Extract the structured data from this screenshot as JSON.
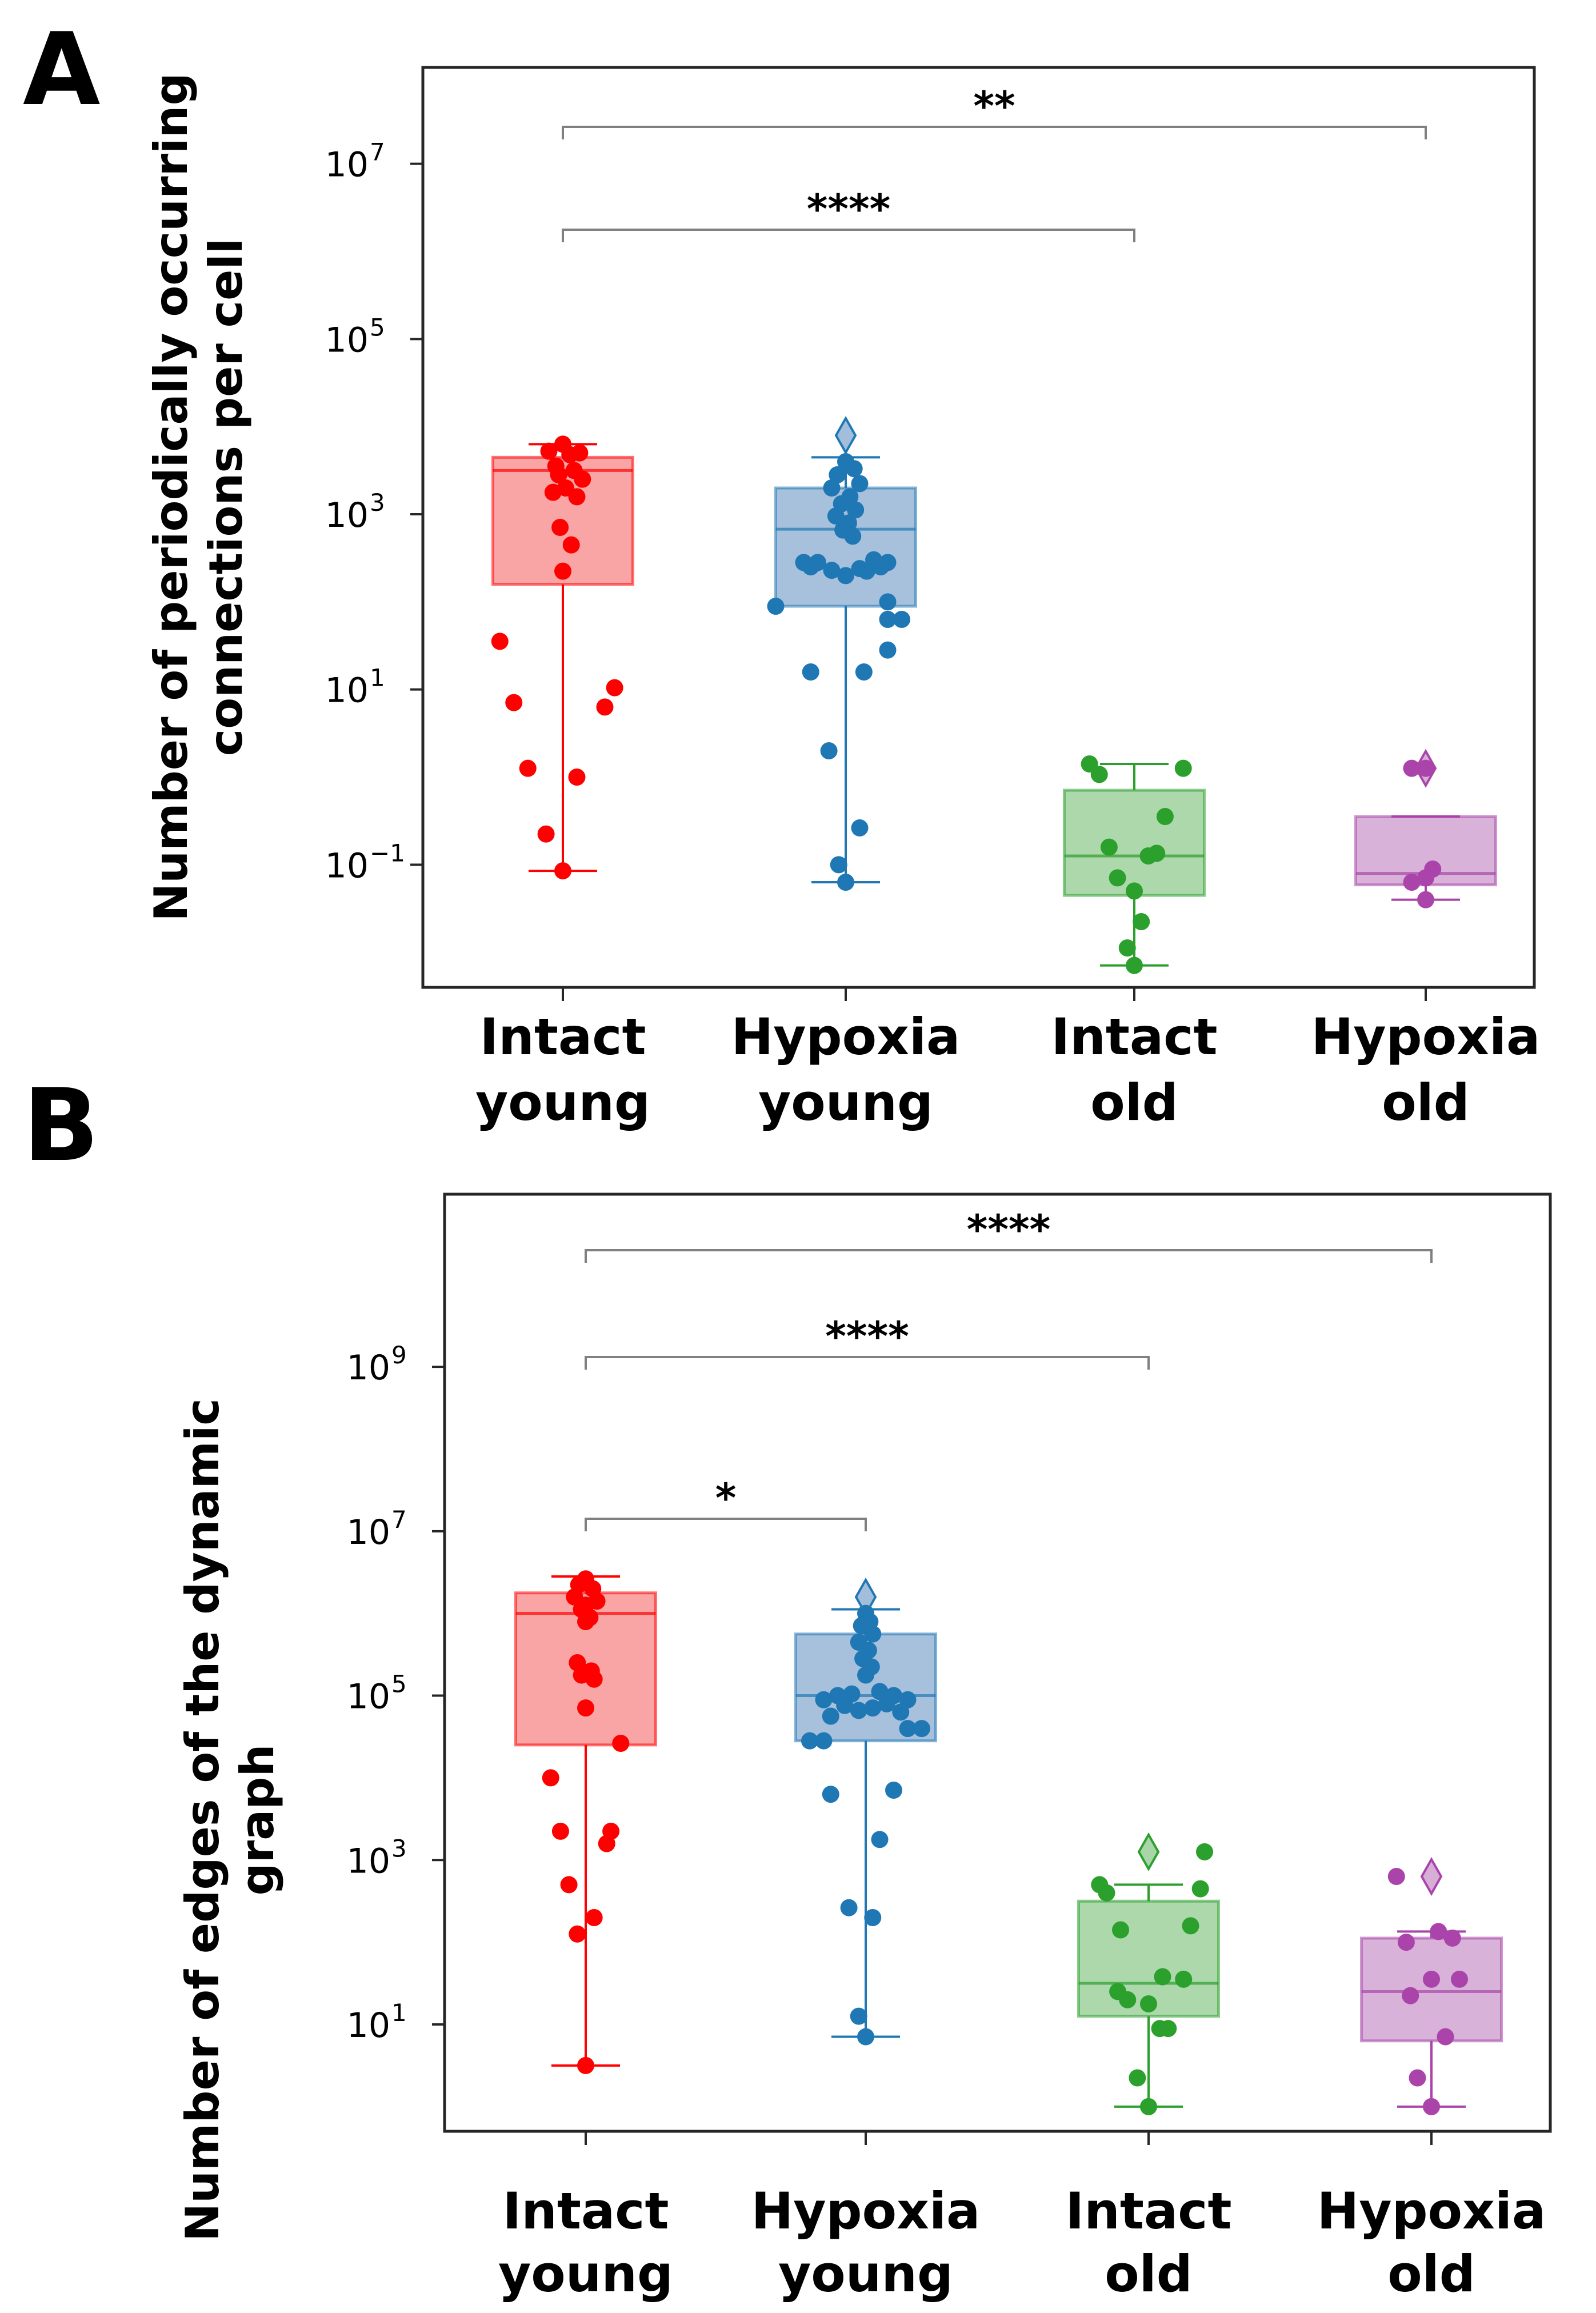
{
  "chart_data": [
    {
      "panel": "A",
      "type": "box",
      "scale": "log10",
      "ylabel_lines": [
        "Number of periodically occurring",
        "connections per cell"
      ],
      "ylim_log10": [
        -2.4,
        8.1
      ],
      "yticks": [
        {
          "base": "10",
          "exp": "7",
          "log": 7
        },
        {
          "base": "10",
          "exp": "5",
          "log": 5
        },
        {
          "base": "10",
          "exp": "3",
          "log": 3
        },
        {
          "base": "10",
          "exp": "1",
          "log": 1
        },
        {
          "base": "10",
          "exp": "−1",
          "log": -1
        }
      ],
      "categories": [
        {
          "line1": "Intact",
          "line2": "young"
        },
        {
          "line1": "Hypoxia",
          "line2": "young"
        },
        {
          "line1": "Intact",
          "line2": "old"
        },
        {
          "line1": "Hypoxia",
          "line2": "old"
        }
      ],
      "series": [
        {
          "name": "Intact young",
          "color": "#ff0000",
          "fill": "#f9a0a0",
          "box_log10": {
            "q1": 2.2,
            "median": 3.5,
            "q3": 3.65,
            "wlo": -1.07,
            "whi": 3.8
          },
          "outliers_log10": [],
          "points": [
            [
              0,
              3.8
            ],
            [
              -0.1,
              3.72
            ],
            [
              0.05,
              3.68
            ],
            [
              0.12,
              3.7
            ],
            [
              -0.05,
              3.55
            ],
            [
              0.08,
              3.5
            ],
            [
              -0.03,
              3.45
            ],
            [
              0.14,
              3.4
            ],
            [
              0.02,
              3.3
            ],
            [
              -0.07,
              3.25
            ],
            [
              0.1,
              3.2
            ],
            [
              -0.02,
              2.85
            ],
            [
              0.06,
              2.65
            ],
            [
              0,
              2.35
            ],
            [
              -0.45,
              1.55
            ],
            [
              -0.35,
              0.85
            ],
            [
              0.3,
              0.8
            ],
            [
              0.37,
              1.02
            ],
            [
              -0.25,
              0.1
            ],
            [
              0.1,
              0
            ],
            [
              -0.12,
              -0.65
            ],
            [
              0,
              -1.07
            ]
          ]
        },
        {
          "name": "Hypoxia young",
          "color": "#1f77b4",
          "fill": "#a2bedb",
          "box_log10": {
            "q1": 1.95,
            "median": 2.83,
            "q3": 3.3,
            "wlo": -1.2,
            "whi": 3.65
          },
          "outliers_log10": [
            3.9
          ],
          "points": [
            [
              0,
              3.6
            ],
            [
              0.06,
              3.52
            ],
            [
              -0.06,
              3.45
            ],
            [
              0.1,
              3.35
            ],
            [
              -0.1,
              3.3
            ],
            [
              0.03,
              3.2
            ],
            [
              -0.03,
              3.12
            ],
            [
              0.07,
              3.05
            ],
            [
              -0.07,
              2.98
            ],
            [
              0.02,
              2.9
            ],
            [
              -0.02,
              2.82
            ],
            [
              0.05,
              2.75
            ],
            [
              0.2,
              2.48
            ],
            [
              -0.2,
              2.45
            ],
            [
              0.3,
              2.45
            ],
            [
              -0.3,
              2.45
            ],
            [
              0.1,
              2.38
            ],
            [
              -0.1,
              2.36
            ],
            [
              0.15,
              2.35
            ],
            [
              0.25,
              2.4
            ],
            [
              -0.25,
              2.4
            ],
            [
              0,
              2.3
            ],
            [
              -0.5,
              1.95
            ],
            [
              0.3,
              1.8
            ],
            [
              0.4,
              1.8
            ],
            [
              0.3,
              2.0
            ],
            [
              0.3,
              1.45
            ],
            [
              -0.25,
              1.2
            ],
            [
              0.13,
              1.2
            ],
            [
              -0.12,
              0.3
            ],
            [
              0.1,
              -0.58
            ],
            [
              -0.05,
              -1.0
            ],
            [
              0,
              -1.2
            ]
          ]
        },
        {
          "name": "Intact old",
          "color": "#2ca02c",
          "fill": "#a8d6a8",
          "box_log10": {
            "q1": -1.35,
            "median": -0.9,
            "q3": -0.15,
            "wlo": -2.15,
            "whi": 0.15
          },
          "outliers_log10": [],
          "points": [
            [
              -0.32,
              0.15
            ],
            [
              -0.25,
              0.03
            ],
            [
              0.35,
              0.1
            ],
            [
              0.22,
              -0.45
            ],
            [
              -0.18,
              -0.8
            ],
            [
              0.1,
              -0.9
            ],
            [
              0.16,
              -0.87
            ],
            [
              -0.12,
              -1.15
            ],
            [
              0,
              -1.3
            ],
            [
              0.05,
              -1.65
            ],
            [
              -0.05,
              -1.95
            ],
            [
              0,
              -2.15
            ]
          ]
        },
        {
          "name": "Hypoxia old",
          "color": "#aa44aa",
          "fill": "#d6aed6",
          "box_log10": {
            "q1": -1.23,
            "median": -1.1,
            "q3": -0.45,
            "wlo": -1.4,
            "whi": -0.45
          },
          "outliers_log10": [
            0.1
          ],
          "points": [
            [
              -0.1,
              0.1
            ],
            [
              0,
              0.1
            ],
            [
              0.05,
              -1.05
            ],
            [
              0,
              -1.15
            ],
            [
              -0.1,
              -1.2
            ],
            [
              0,
              -1.4
            ]
          ]
        }
      ],
      "significance": [
        {
          "label": "**",
          "from": 0,
          "to": 3
        },
        {
          "label": "****",
          "from": 0,
          "to": 2
        }
      ]
    },
    {
      "panel": "B",
      "type": "box",
      "scale": "log10",
      "ylabel_lines": [
        "Number of edges of the dynamic",
        "graph"
      ],
      "ylim_log10": [
        -0.3,
        11.1
      ],
      "yticks": [
        {
          "base": "10",
          "exp": "9",
          "log": 9
        },
        {
          "base": "10",
          "exp": "7",
          "log": 7
        },
        {
          "base": "10",
          "exp": "5",
          "log": 5
        },
        {
          "base": "10",
          "exp": "3",
          "log": 3
        },
        {
          "base": "10",
          "exp": "1",
          "log": 1
        }
      ],
      "categories": [
        {
          "line1": "Intact",
          "line2": "young"
        },
        {
          "line1": "Hypoxia",
          "line2": "young"
        },
        {
          "line1": "Intact",
          "line2": "old"
        },
        {
          "line1": "Hypoxia",
          "line2": "old"
        }
      ],
      "series": [
        {
          "name": "Intact young",
          "color": "#ff0000",
          "fill": "#f9a0a0",
          "box_log10": {
            "q1": 4.4,
            "median": 6.0,
            "q3": 6.25,
            "wlo": 0.5,
            "whi": 6.45
          },
          "outliers_log10": [],
          "points": [
            [
              0,
              6.42
            ],
            [
              -0.05,
              6.35
            ],
            [
              0.05,
              6.3
            ],
            [
              -0.08,
              6.2
            ],
            [
              0.08,
              6.15
            ],
            [
              0,
              6.1
            ],
            [
              -0.03,
              6.05
            ],
            [
              0.03,
              5.95
            ],
            [
              0,
              5.9
            ],
            [
              -0.06,
              5.4
            ],
            [
              0.04,
              5.3
            ],
            [
              -0.03,
              5.25
            ],
            [
              0.06,
              5.2
            ],
            [
              0,
              4.85
            ],
            [
              0.25,
              4.42
            ],
            [
              -0.25,
              4.0
            ],
            [
              -0.18,
              3.35
            ],
            [
              0.18,
              3.35
            ],
            [
              0.15,
              3.2
            ],
            [
              -0.12,
              2.7
            ],
            [
              0.06,
              2.3
            ],
            [
              -0.06,
              2.1
            ],
            [
              0,
              0.5
            ]
          ]
        },
        {
          "name": "Hypoxia young",
          "color": "#1f77b4",
          "fill": "#a2bedb",
          "box_log10": {
            "q1": 4.45,
            "median": 5.0,
            "q3": 5.75,
            "wlo": 0.85,
            "whi": 6.05
          },
          "outliers_log10": [
            6.2
          ],
          "points": [
            [
              0,
              6.0
            ],
            [
              0.03,
              5.9
            ],
            [
              -0.03,
              5.85
            ],
            [
              0.05,
              5.75
            ],
            [
              -0.05,
              5.65
            ],
            [
              0.02,
              5.55
            ],
            [
              -0.02,
              5.45
            ],
            [
              0.04,
              5.35
            ],
            [
              0,
              5.25
            ],
            [
              -0.2,
              5.0
            ],
            [
              -0.1,
              5.02
            ],
            [
              0.1,
              5.05
            ],
            [
              0.2,
              5.0
            ],
            [
              0.3,
              4.95
            ],
            [
              -0.3,
              4.95
            ],
            [
              0.15,
              4.9
            ],
            [
              -0.15,
              4.88
            ],
            [
              0.05,
              4.85
            ],
            [
              -0.05,
              4.82
            ],
            [
              0.25,
              4.8
            ],
            [
              -0.25,
              4.75
            ],
            [
              0.3,
              4.6
            ],
            [
              -0.3,
              4.45
            ],
            [
              0.4,
              4.6
            ],
            [
              -0.4,
              4.45
            ],
            [
              -0.25,
              3.8
            ],
            [
              0.2,
              3.85
            ],
            [
              0.1,
              3.25
            ],
            [
              -0.12,
              2.42
            ],
            [
              0.05,
              2.3
            ],
            [
              -0.05,
              1.1
            ],
            [
              0,
              0.85
            ]
          ]
        },
        {
          "name": "Intact old",
          "color": "#2ca02c",
          "fill": "#a8d6a8",
          "box_log10": {
            "q1": 1.1,
            "median": 1.5,
            "q3": 2.5,
            "wlo": 0.0,
            "whi": 2.7
          },
          "outliers_log10": [
            3.1
          ],
          "points": [
            [
              -0.35,
              2.7
            ],
            [
              -0.3,
              2.6
            ],
            [
              0.4,
              3.1
            ],
            [
              0.37,
              2.65
            ],
            [
              0.3,
              2.2
            ],
            [
              -0.2,
              2.15
            ],
            [
              0.1,
              1.58
            ],
            [
              0.25,
              1.55
            ],
            [
              -0.22,
              1.4
            ],
            [
              0,
              1.25
            ],
            [
              -0.15,
              1.3
            ],
            [
              0.08,
              0.95
            ],
            [
              0.14,
              0.95
            ],
            [
              -0.08,
              0.35
            ],
            [
              0,
              0.0
            ]
          ]
        },
        {
          "name": "Hypoxia old",
          "color": "#aa44aa",
          "fill": "#d6aed6",
          "box_log10": {
            "q1": 0.8,
            "median": 1.4,
            "q3": 2.05,
            "wlo": 0.0,
            "whi": 2.13
          },
          "outliers_log10": [
            2.8
          ],
          "points": [
            [
              -0.25,
              2.8
            ],
            [
              0.05,
              2.13
            ],
            [
              -0.18,
              2.0
            ],
            [
              0.15,
              2.05
            ],
            [
              0.2,
              1.55
            ],
            [
              0,
              1.55
            ],
            [
              -0.15,
              1.35
            ],
            [
              0.1,
              0.85
            ],
            [
              -0.1,
              0.35
            ],
            [
              0,
              0.0
            ]
          ]
        }
      ],
      "significance": [
        {
          "label": "****",
          "from": 0,
          "to": 3
        },
        {
          "label": "****",
          "from": 0,
          "to": 2
        },
        {
          "label": "*",
          "from": 0,
          "to": 1
        }
      ]
    }
  ],
  "panel_letters": [
    "A",
    "B"
  ]
}
